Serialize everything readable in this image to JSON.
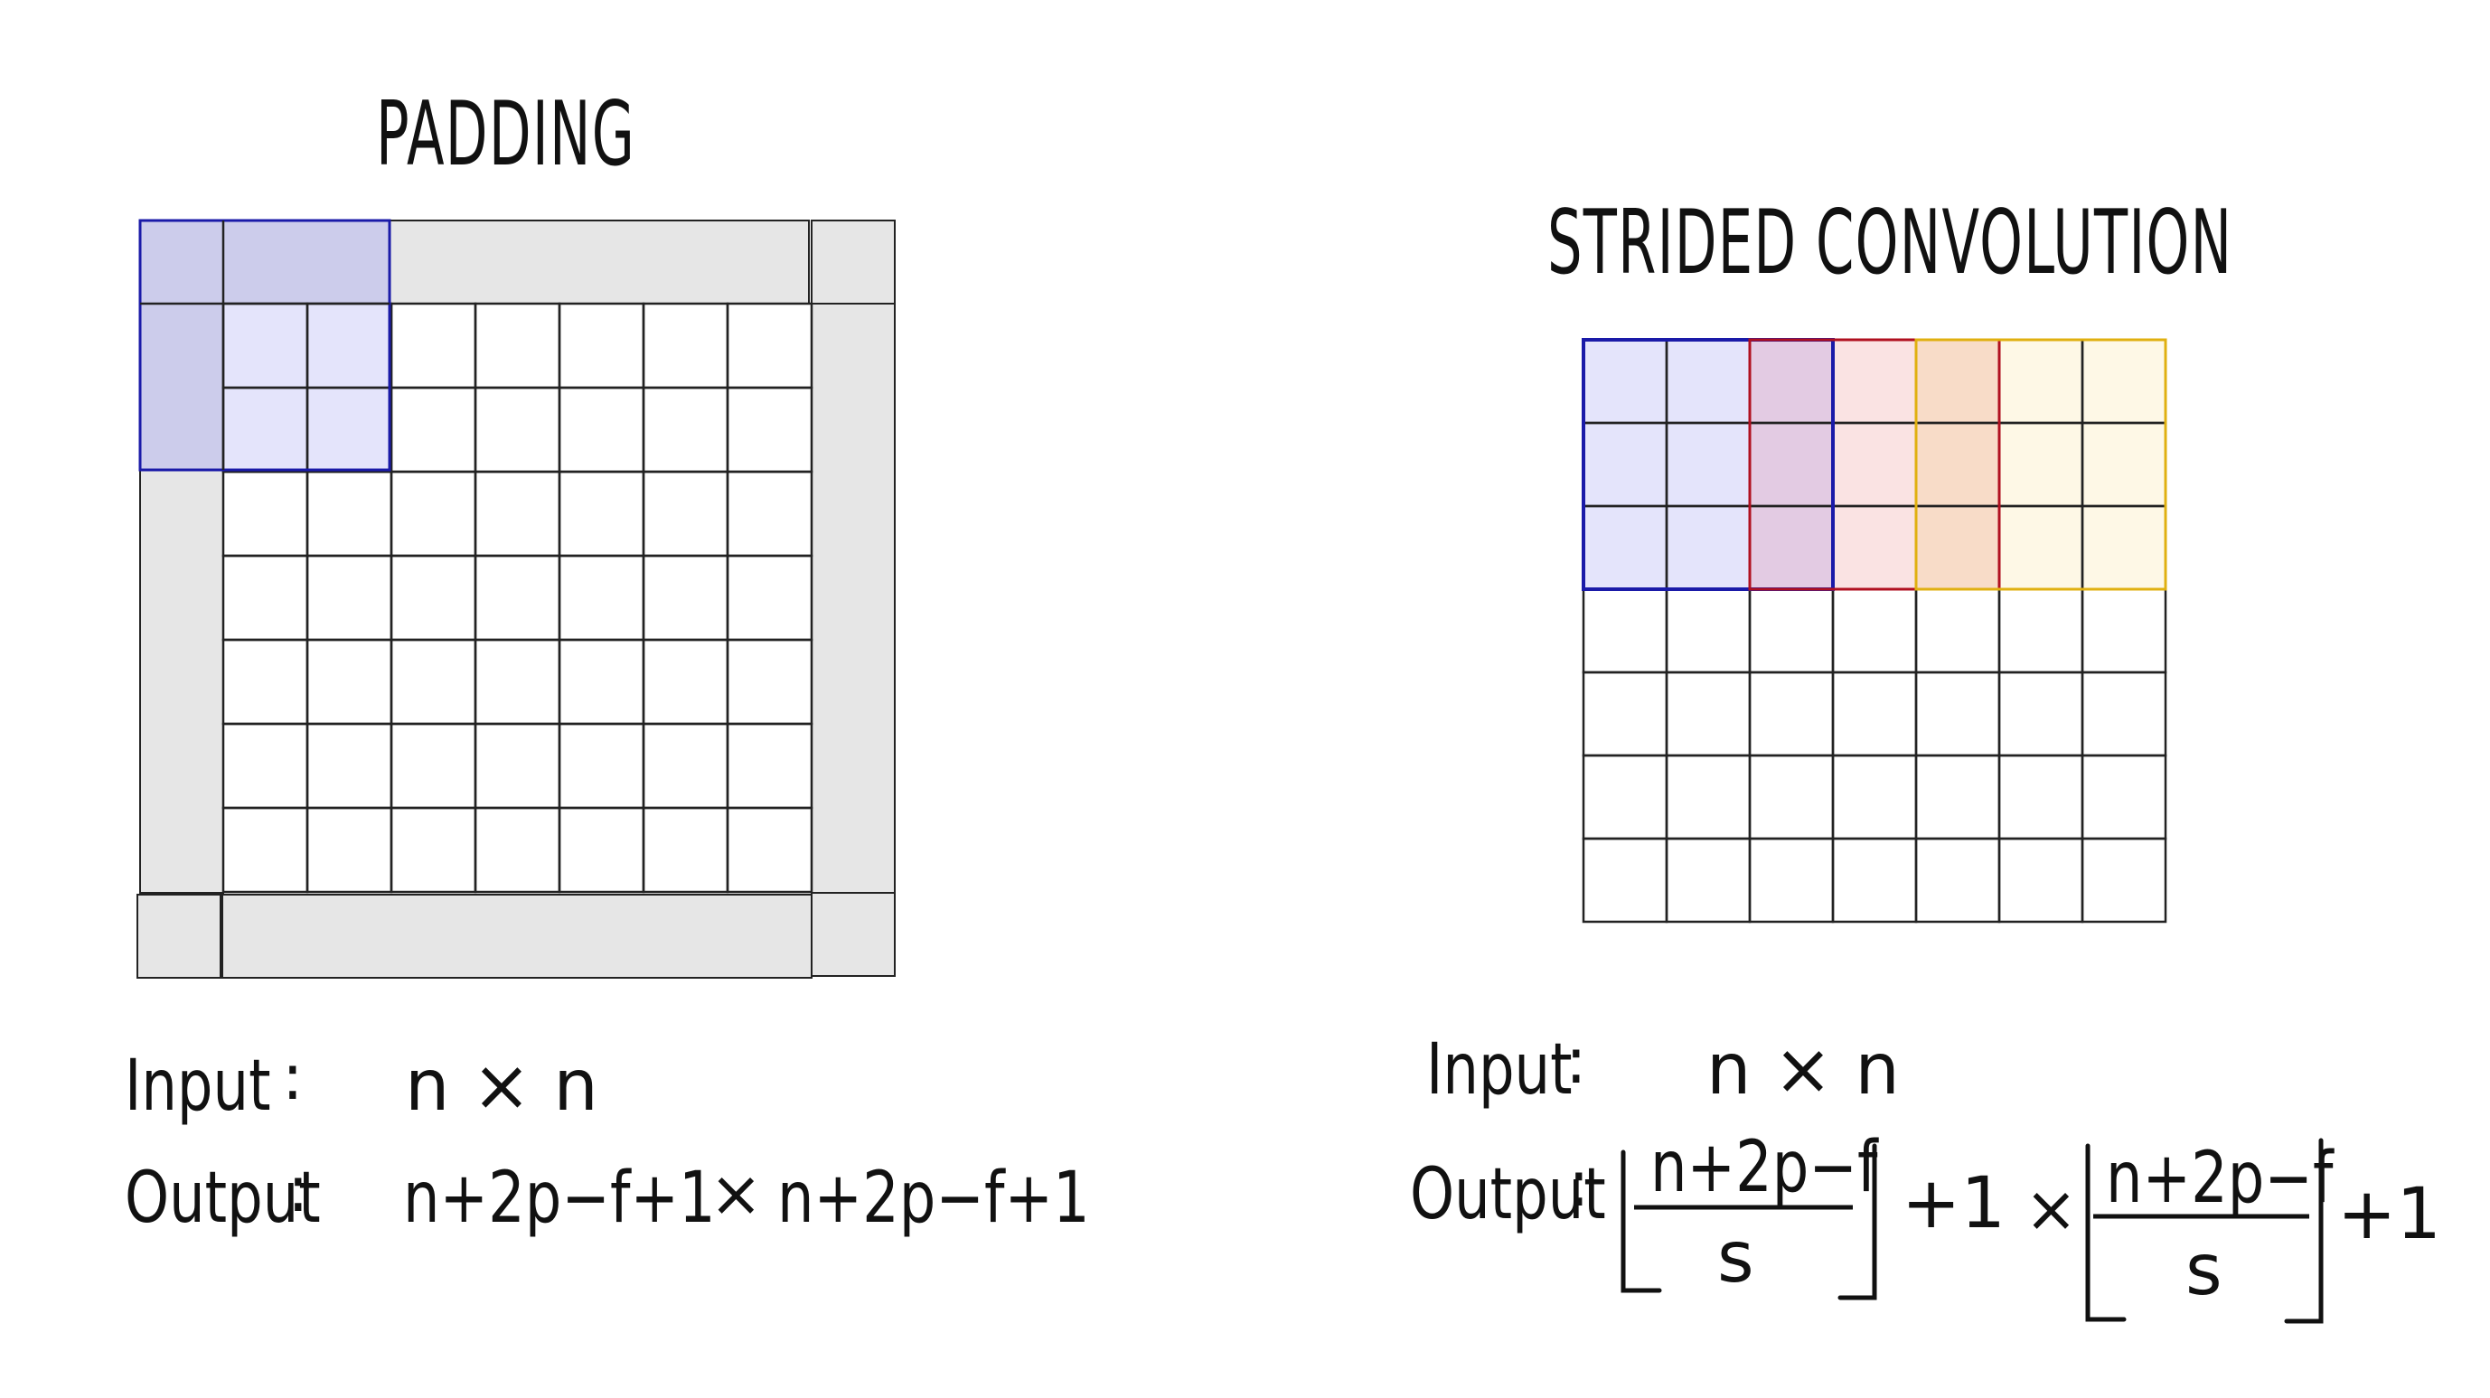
{
  "padding": {
    "title": "PADDING",
    "input_label": "Input",
    "input_expr": "n × n",
    "output_label": "Output",
    "output_expr_1": "n+2p−f+1",
    "times": "×",
    "output_expr_2": "n+2p−f+1"
  },
  "strided": {
    "title": "STRIDED  CONVOLUTION",
    "input_label": "Input",
    "input_expr": "n × n",
    "output_label": "Output",
    "numerator": "n+2p−f",
    "denominator": "s",
    "plus_one": "+1",
    "times": "×"
  },
  "colors": {
    "pad_gray": "#e6e6e6",
    "pad_blue": "#cccceb",
    "filter_blue": "#e4e4fb",
    "stroke_blue": "#1a1aa8",
    "filter_red_overlap": "#e3cbe3",
    "filter_red": "#fae3e3",
    "stroke_red": "#b01020",
    "filter_orange_overlap": "#f8dcc8",
    "filter_yellow": "#fef8e6",
    "stroke_yellow": "#e0b010"
  }
}
